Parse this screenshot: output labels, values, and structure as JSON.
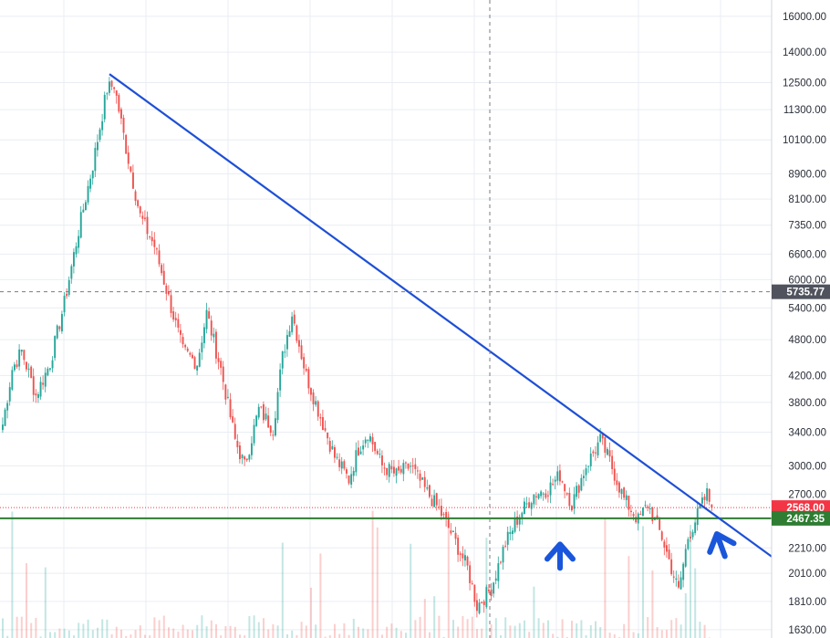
{
  "chart_data": {
    "type": "candlestick",
    "y_scale": "log",
    "ylim": [
      1580,
      17000
    ],
    "y_ticks": [
      "16000.00",
      "14000.00",
      "12500.00",
      "11300.00",
      "10100.00",
      "8900.00",
      "8100.00",
      "7350.00",
      "6600.00",
      "6000.00",
      "5400.00",
      "4800.00",
      "4200.00",
      "3800.00",
      "3400.00",
      "3000.00",
      "2700.00",
      "2210.00",
      "2010.00",
      "1810.00",
      "1630.00"
    ],
    "crosshair": {
      "price": 5735.77,
      "label": "5735.77"
    },
    "last_price": {
      "price": 2568.0,
      "label": "2568.00",
      "color": "#f23645"
    },
    "support_level": {
      "price": 2467.35,
      "label": "2467.35",
      "color": "#2e7d32"
    },
    "trendline": {
      "from_price": 12900,
      "to_price": 2140,
      "color": "#1e4fd6"
    },
    "arrows": [
      {
        "direction": "up",
        "price": 2150
      },
      {
        "direction": "up",
        "price": 2240
      }
    ],
    "colors": {
      "up": "#26a69a",
      "down": "#ef5350",
      "grid": "#e9edf3",
      "axis_text": "#2a2e39"
    },
    "waypoints": [
      {
        "i": 0,
        "p": 3500
      },
      {
        "i": 4,
        "p": 4300
      },
      {
        "i": 8,
        "p": 4600
      },
      {
        "i": 14,
        "p": 3900
      },
      {
        "i": 20,
        "p": 4400
      },
      {
        "i": 26,
        "p": 5500
      },
      {
        "i": 32,
        "p": 7200
      },
      {
        "i": 38,
        "p": 9200
      },
      {
        "i": 44,
        "p": 12200
      },
      {
        "i": 47,
        "p": 12400
      },
      {
        "i": 52,
        "p": 9800
      },
      {
        "i": 58,
        "p": 7600
      },
      {
        "i": 64,
        "p": 6800
      },
      {
        "i": 70,
        "p": 5600
      },
      {
        "i": 76,
        "p": 4600
      },
      {
        "i": 82,
        "p": 4400
      },
      {
        "i": 86,
        "p": 5300
      },
      {
        "i": 92,
        "p": 4300
      },
      {
        "i": 98,
        "p": 3300
      },
      {
        "i": 102,
        "p": 3000
      },
      {
        "i": 108,
        "p": 3700
      },
      {
        "i": 114,
        "p": 3450
      },
      {
        "i": 118,
        "p": 4500
      },
      {
        "i": 122,
        "p": 5300
      },
      {
        "i": 128,
        "p": 4200
      },
      {
        "i": 134,
        "p": 3600
      },
      {
        "i": 140,
        "p": 3100
      },
      {
        "i": 146,
        "p": 2850
      },
      {
        "i": 150,
        "p": 3200
      },
      {
        "i": 154,
        "p": 3400
      },
      {
        "i": 160,
        "p": 3000
      },
      {
        "i": 166,
        "p": 2900
      },
      {
        "i": 172,
        "p": 3000
      },
      {
        "i": 178,
        "p": 2750
      },
      {
        "i": 184,
        "p": 2550
      },
      {
        "i": 190,
        "p": 2300
      },
      {
        "i": 196,
        "p": 2050
      },
      {
        "i": 200,
        "p": 1780
      },
      {
        "i": 206,
        "p": 1900
      },
      {
        "i": 212,
        "p": 2250
      },
      {
        "i": 218,
        "p": 2500
      },
      {
        "i": 224,
        "p": 2700
      },
      {
        "i": 230,
        "p": 2750
      },
      {
        "i": 235,
        "p": 2900
      },
      {
        "i": 240,
        "p": 2600
      },
      {
        "i": 246,
        "p": 3000
      },
      {
        "i": 252,
        "p": 3300
      },
      {
        "i": 256,
        "p": 3050
      },
      {
        "i": 262,
        "p": 2650
      },
      {
        "i": 268,
        "p": 2450
      },
      {
        "i": 272,
        "p": 2600
      },
      {
        "i": 278,
        "p": 2300
      },
      {
        "i": 282,
        "p": 2050
      },
      {
        "i": 285,
        "p": 1880
      },
      {
        "i": 289,
        "p": 2300
      },
      {
        "i": 294,
        "p": 2550
      },
      {
        "i": 297,
        "p": 2700
      },
      {
        "i": 299,
        "p": 2568
      }
    ]
  }
}
